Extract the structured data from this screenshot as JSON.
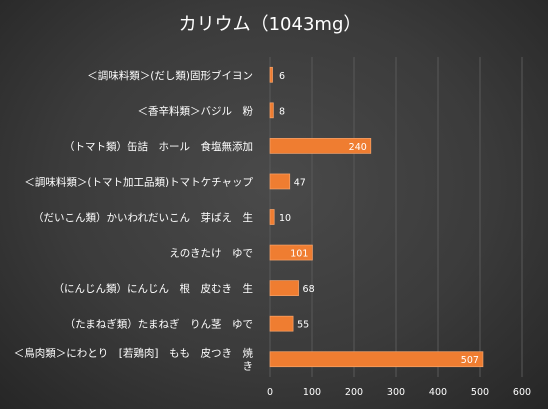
{
  "chart_data": {
    "type": "bar",
    "orientation": "horizontal",
    "title": "カリウム（1043mg）",
    "categories": [
      "＜調味料類＞(だし類)固形ブイヨン",
      "＜香辛料類＞バジル　粉",
      "（トマト類）缶詰　ホール　食塩無添加",
      "＜調味料類＞(トマト加工品類)トマトケチャップ",
      "（だいこん類）かいわれだいこん　芽ばえ　生",
      "えのきたけ　ゆで",
      "（にんじん類）にんじん　根　皮むき　生",
      "（たまねぎ類）たまねぎ　りん茎　ゆで",
      "＜鳥肉類＞にわとり　[若鶏肉]　もも　皮つき　焼き"
    ],
    "category_lines": [
      [
        "＜調味料類＞(だし類)固形ブイヨン"
      ],
      [
        "＜香辛料類＞バジル　粉"
      ],
      [
        "（トマト類）缶詰　ホール　食塩無添加"
      ],
      [
        "＜調味料類＞(トマト加工品類)トマトケチャップ"
      ],
      [
        "（だいこん類）かいわれだいこん　芽ばえ　生"
      ],
      [
        "えのきたけ　ゆで"
      ],
      [
        "（にんじん類）にんじん　根　皮むき　生"
      ],
      [
        "（たまねぎ類）たまねぎ　りん茎　ゆで"
      ],
      [
        "＜鳥肉類＞にわとり　[若鶏肉]　もも　皮つき　焼",
        "き"
      ]
    ],
    "values": [
      6,
      8,
      240,
      47,
      10,
      101,
      68,
      55,
      507
    ],
    "x_ticks": [
      "0",
      "100",
      "200",
      "300",
      "400",
      "500",
      "600"
    ],
    "xlim": [
      0,
      600
    ],
    "grid": true,
    "legend": "none",
    "colors": {
      "bar": "#ef7d31",
      "bar_edge": "#f8a46b",
      "grid": "#595959",
      "text": "#ffffff"
    }
  }
}
